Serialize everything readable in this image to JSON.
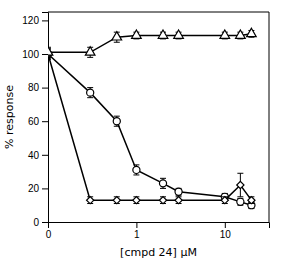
{
  "chart_data": {
    "type": "line",
    "log": "x",
    "x": [
      0.1,
      0.3,
      0.6,
      1.0,
      2.0,
      3.0,
      10.0,
      15.0,
      20.0
    ],
    "series": [
      {
        "color": "#000000",
        "marker": "circle",
        "line_style": "solid",
        "values": [
          100,
          77,
          60,
          31,
          23,
          18,
          15,
          12,
          10
        ],
        "errors": [
          3,
          3,
          3,
          3,
          3,
          2,
          2,
          2,
          2
        ]
      },
      {
        "color": "#000000",
        "marker": "diamond",
        "line_style": "solid",
        "values": [
          100,
          13,
          13,
          13,
          13,
          13,
          13,
          22,
          13
        ],
        "errors": [
          3,
          2,
          2,
          2,
          2,
          2,
          2,
          7,
          2
        ]
      },
      {
        "color": "#000000",
        "marker": "triangle",
        "line_style": "solid",
        "values": [
          101,
          101,
          110,
          111,
          111,
          111,
          111,
          111,
          112
        ],
        "errors": [
          3,
          3,
          3,
          2,
          2,
          2,
          2,
          2,
          2
        ]
      }
    ],
    "xlim": [
      0.1,
      31.622776601683793
    ],
    "xticks": [
      {
        "value": 0.1,
        "label": "0"
      },
      1.0,
      10.0
    ],
    "ylim": [
      0,
      125
    ],
    "yticks": [
      0,
      20,
      40,
      60,
      80,
      100,
      120
    ],
    "xlabel": "[cmpd 24] μM",
    "ylabel": "% response"
  }
}
